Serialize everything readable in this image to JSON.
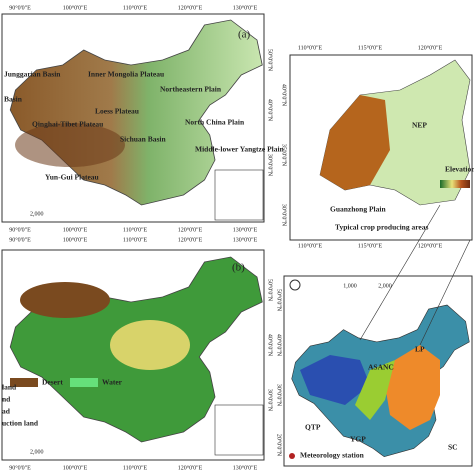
{
  "panel_a": {
    "label": "(a)",
    "top_axis": [
      "90°0'0\"E",
      "100°0'0\"E",
      "110°0'0\"E",
      "120°0'0\"E",
      "130°0'0\"E"
    ],
    "bottom_axis": [
      "90°0'0\"E",
      "100°0'0\"E",
      "110°0'0\"E",
      "120°0'0\"E",
      "130°0'0\"E"
    ],
    "right_axis": [
      "50°0'0\"N",
      "40°0'0\"N",
      "30°0'0\"N"
    ],
    "places": [
      "Junggarian Basin",
      "Basin",
      "Inner Mongolia Plateau",
      "Northeastern Plain",
      "Loess Plateau",
      "Qinghai-Tibet Plateau",
      "North China Plain",
      "Sichuan Basin",
      "Middle-lower Yangtze Plain",
      "Yun-Gui Plateau"
    ],
    "scale": "2,000"
  },
  "panel_inset": {
    "top_axis": [
      "110°0'0\"E",
      "115°0'0\"E",
      "120°0'0\"E"
    ],
    "bottom_axis": [
      "110°0'0\"E",
      "115°0'0\"E",
      "120°0'0\"E"
    ],
    "left_axis": [
      "40°0'0\"N",
      "35°0'0\"N",
      "30°0'0\"N"
    ],
    "places": [
      "NEP",
      "Guanzhong Plain"
    ],
    "legend": "Elevation",
    "caption": "Typical crop producing areas"
  },
  "panel_b": {
    "label": "(b)",
    "top_axis": [
      "90°0'0\"E",
      "100°0'0\"E",
      "110°0'0\"E",
      "120°0'0\"E",
      "130°0'0\"E"
    ],
    "bottom_axis": [
      "90°0'0\"E",
      "100°0'0\"E",
      "110°0'0\"E",
      "120°0'0\"E",
      "130°0'0\"E"
    ],
    "right_axis": [
      "50°0'0\"N",
      "40°0'0\"N",
      "30°0'0\"N"
    ],
    "legend": [
      "Desert",
      "Water",
      "land",
      "nd",
      "ad",
      "uction land"
    ],
    "scale": "2,000"
  },
  "panel_c": {
    "top_axis": [
      "1,000",
      "2,000"
    ],
    "left_axis": [
      "50°0'0\"N",
      "40°0'0\"N",
      "30°0'0\"N",
      "20°0'0\"N"
    ],
    "regions": [
      "LP",
      "ASANC",
      "QTP",
      "YGP",
      "SC"
    ],
    "legend": "Meteorology station"
  }
}
